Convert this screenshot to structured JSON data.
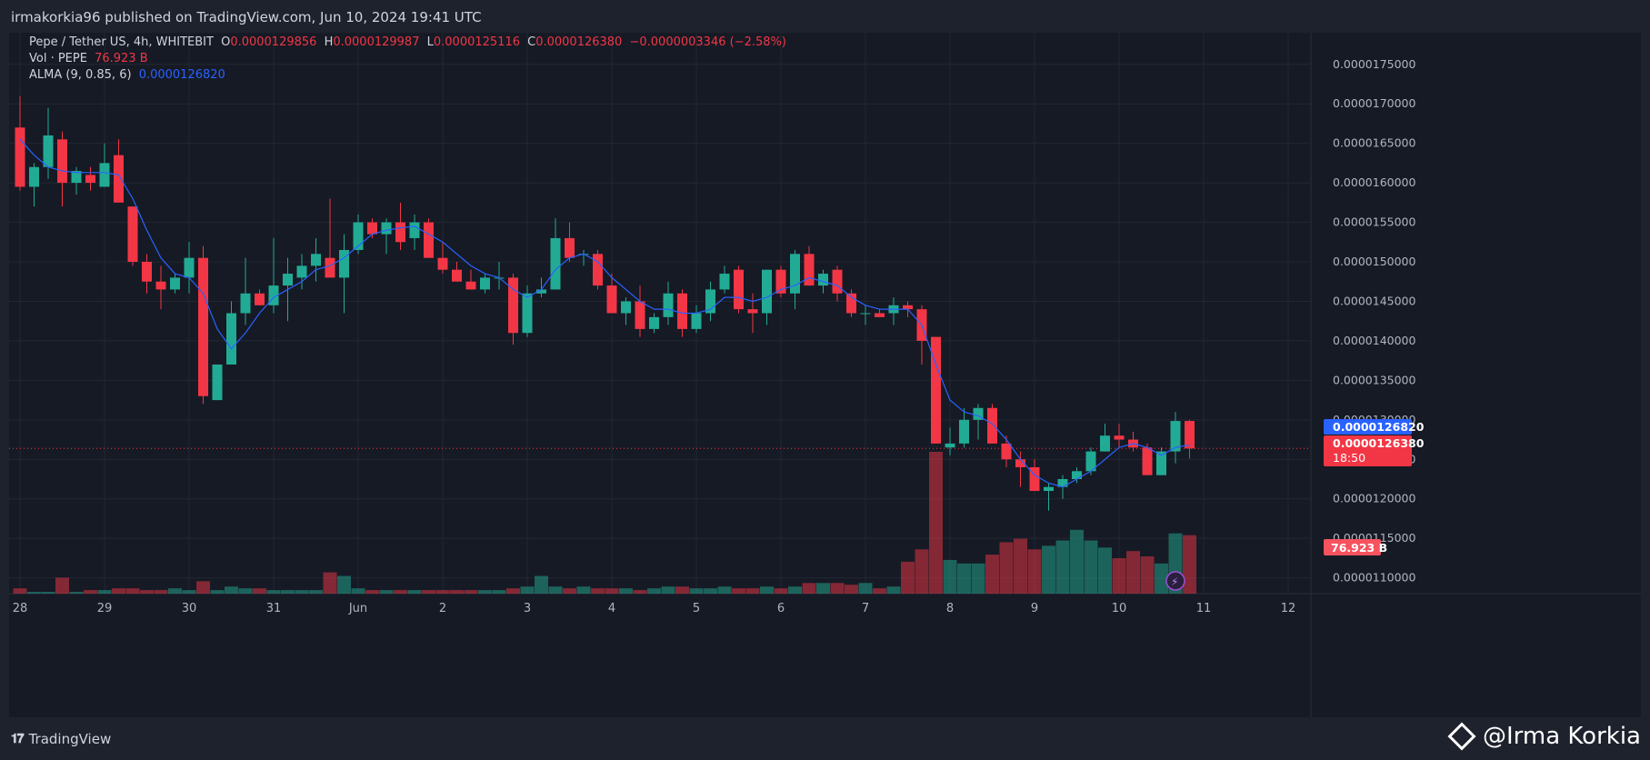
{
  "header": {
    "published": "irmakorkia96 published on TradingView.com, Jun 10, 2024 19:41 UTC"
  },
  "legend": {
    "symbol": "Pepe / Tether US, 4h, WHITEBIT",
    "o_label": "O",
    "o_value": "0.0000129856",
    "h_label": "H",
    "h_value": "0.0000129987",
    "l_label": "L",
    "l_value": "0.0000125116",
    "c_label": "C",
    "c_value": "0.0000126380",
    "change": "−0.0000003346 (−2.58%)",
    "vol_label": "Vol · PEPE",
    "vol_value": "76.923 B",
    "alma_label": "ALMA (9, 0.85, 6)",
    "alma_value": "0.0000126820"
  },
  "badges": {
    "alma": "0.0000126820",
    "price": "0.0000126380",
    "countdown": "18:50",
    "volume": "76.923 B"
  },
  "footer": {
    "brand": "TradingView",
    "watermark": "@Irma Korkia"
  },
  "colors": {
    "up": "#22ab94",
    "down": "#f23645",
    "ma": "#2962ff",
    "background": "#161a25",
    "grid": "#232733"
  },
  "chart_data": {
    "type": "candlestick",
    "title": "Pepe / Tether US, 4h, WHITEBIT",
    "symbol": "PEPEUSDT",
    "exchange": "WHITEBIT",
    "interval": "4h",
    "y_scale": 1e-10,
    "ylim": [
      108000,
      179000
    ],
    "y_ticks": [
      110000,
      115000,
      120000,
      125000,
      130000,
      135000,
      140000,
      145000,
      150000,
      155000,
      160000,
      165000,
      170000,
      175000
    ],
    "x_labels": [
      "28",
      "29",
      "30",
      "31",
      "Jun",
      "2",
      "3",
      "4",
      "5",
      "6",
      "7",
      "8",
      "9",
      "10",
      "11",
      "12"
    ],
    "x_label_index": [
      0,
      6,
      12,
      18,
      24,
      30,
      36,
      42,
      48,
      54,
      60,
      66,
      72,
      78,
      84,
      90
    ],
    "last_price": 126380,
    "alma_last": 126820,
    "candles": [
      [
        0,
        167000,
        171000,
        159000,
        159500,
        3
      ],
      [
        1,
        159500,
        162500,
        157000,
        162000,
        1
      ],
      [
        2,
        162000,
        169500,
        160500,
        166000,
        1
      ],
      [
        3,
        165500,
        166500,
        157000,
        160000,
        9
      ],
      [
        4,
        160000,
        162000,
        158500,
        161500,
        1
      ],
      [
        5,
        161000,
        162000,
        159000,
        160000,
        2
      ],
      [
        6,
        159500,
        165000,
        159500,
        162500,
        2
      ],
      [
        7,
        163500,
        165500,
        157500,
        157500,
        3
      ],
      [
        8,
        157000,
        157000,
        149500,
        150000,
        3
      ],
      [
        9,
        150000,
        151000,
        146000,
        147500,
        2
      ],
      [
        10,
        147500,
        149500,
        144000,
        146500,
        2
      ],
      [
        11,
        146500,
        148500,
        146000,
        148000,
        3
      ],
      [
        12,
        148000,
        152500,
        146000,
        150500,
        2
      ],
      [
        13,
        150500,
        152000,
        132000,
        133000,
        7
      ],
      [
        14,
        132500,
        137000,
        132500,
        137000,
        2
      ],
      [
        15,
        137000,
        145000,
        137000,
        143500,
        4
      ],
      [
        16,
        143500,
        150500,
        142000,
        146000,
        3
      ],
      [
        17,
        146000,
        146500,
        144500,
        144500,
        3
      ],
      [
        18,
        144500,
        153000,
        143500,
        147000,
        2
      ],
      [
        19,
        147000,
        150500,
        142500,
        148500,
        2
      ],
      [
        20,
        148000,
        151000,
        146500,
        149500,
        2
      ],
      [
        21,
        149500,
        153000,
        147500,
        151000,
        2
      ],
      [
        22,
        150500,
        158000,
        148500,
        148000,
        12
      ],
      [
        23,
        148000,
        153500,
        143500,
        151500,
        10
      ],
      [
        24,
        151500,
        156000,
        151000,
        155000,
        3
      ],
      [
        25,
        155000,
        155500,
        153000,
        153500,
        2
      ],
      [
        26,
        153500,
        155500,
        151000,
        155000,
        2
      ],
      [
        27,
        155000,
        157500,
        151500,
        152500,
        2
      ],
      [
        28,
        153000,
        156000,
        151500,
        155000,
        2
      ],
      [
        29,
        155000,
        155500,
        150500,
        150500,
        2
      ],
      [
        30,
        150500,
        152500,
        148500,
        149000,
        2
      ],
      [
        31,
        149000,
        150000,
        147500,
        147500,
        2
      ],
      [
        32,
        147500,
        149000,
        146500,
        146500,
        2
      ],
      [
        33,
        146500,
        148500,
        146000,
        148000,
        2
      ],
      [
        34,
        148000,
        150000,
        146500,
        148000,
        2
      ],
      [
        35,
        148000,
        148500,
        139500,
        141000,
        3
      ],
      [
        36,
        141000,
        147000,
        140500,
        146000,
        4
      ],
      [
        37,
        146000,
        148000,
        145500,
        146500,
        10
      ],
      [
        38,
        146500,
        155500,
        146500,
        153000,
        4
      ],
      [
        39,
        153000,
        155000,
        150000,
        150500,
        3
      ],
      [
        40,
        151000,
        151500,
        149500,
        151000,
        4
      ],
      [
        41,
        151000,
        151500,
        146500,
        147000,
        3
      ],
      [
        42,
        147000,
        148500,
        143500,
        143500,
        3
      ],
      [
        43,
        143500,
        145500,
        142000,
        145000,
        3
      ],
      [
        44,
        145000,
        147000,
        140500,
        141500,
        2
      ],
      [
        45,
        141500,
        143500,
        141000,
        143000,
        3
      ],
      [
        46,
        143000,
        147500,
        142000,
        146000,
        4
      ],
      [
        47,
        146000,
        146500,
        140500,
        141500,
        4
      ],
      [
        48,
        141500,
        144500,
        141000,
        143500,
        3
      ],
      [
        49,
        143500,
        147500,
        142500,
        146500,
        3
      ],
      [
        50,
        146500,
        149500,
        146000,
        148500,
        4
      ],
      [
        51,
        149000,
        149500,
        143500,
        144000,
        3
      ],
      [
        52,
        144000,
        146000,
        141000,
        143500,
        3
      ],
      [
        53,
        143500,
        149000,
        142000,
        149000,
        4
      ],
      [
        54,
        149000,
        149500,
        145500,
        146000,
        3
      ],
      [
        55,
        146000,
        151500,
        144000,
        151000,
        4
      ],
      [
        56,
        151000,
        152000,
        147000,
        147000,
        6
      ],
      [
        57,
        147000,
        149000,
        146000,
        148500,
        6
      ],
      [
        58,
        149000,
        149500,
        145000,
        146000,
        6
      ],
      [
        59,
        146000,
        146500,
        143000,
        143500,
        5
      ],
      [
        60,
        143500,
        144500,
        142000,
        143500,
        6
      ],
      [
        61,
        143500,
        144000,
        143000,
        143000,
        3
      ],
      [
        62,
        143500,
        145500,
        142000,
        144500,
        4
      ],
      [
        63,
        144500,
        145000,
        143000,
        144000,
        18
      ],
      [
        64,
        144000,
        144500,
        137000,
        140000,
        25
      ],
      [
        65,
        140500,
        140500,
        127000,
        127000,
        80
      ],
      [
        66,
        126500,
        129000,
        125500,
        127000,
        19
      ],
      [
        67,
        127000,
        131500,
        126500,
        130000,
        17
      ],
      [
        68,
        130000,
        132000,
        127500,
        131500,
        17
      ],
      [
        69,
        131500,
        132000,
        127000,
        127000,
        22
      ],
      [
        70,
        127000,
        128000,
        124000,
        125000,
        29
      ],
      [
        71,
        125000,
        126000,
        121500,
        124000,
        31
      ],
      [
        72,
        124000,
        125000,
        121000,
        121000,
        25
      ],
      [
        73,
        121000,
        122000,
        118500,
        121500,
        27
      ],
      [
        74,
        121500,
        123000,
        120000,
        122500,
        30
      ],
      [
        75,
        122500,
        124000,
        122000,
        123500,
        36
      ],
      [
        76,
        123500,
        126500,
        123000,
        126000,
        30
      ],
      [
        77,
        126000,
        129500,
        126000,
        128000,
        26
      ],
      [
        78,
        128000,
        129500,
        126500,
        127500,
        20
      ],
      [
        79,
        127500,
        128500,
        126000,
        126500,
        24
      ],
      [
        80,
        126500,
        127000,
        123000,
        123000,
        21
      ],
      [
        81,
        123000,
        126500,
        123000,
        126000,
        17
      ],
      [
        82,
        126000,
        131000,
        124500,
        129856,
        34
      ],
      [
        83,
        129856,
        129987,
        125116,
        126380,
        33
      ]
    ],
    "volume_unit": "relative",
    "alma": [
      165500,
      163500,
      162000,
      161500,
      161300,
      161300,
      161300,
      161000,
      158000,
      154000,
      150500,
      148500,
      148000,
      146000,
      141500,
      139000,
      141000,
      143500,
      145500,
      146500,
      147500,
      149000,
      149500,
      150500,
      152000,
      153500,
      154000,
      154300,
      154500,
      153500,
      152500,
      151000,
      149500,
      148500,
      148000,
      146500,
      145500,
      146500,
      149000,
      150500,
      151000,
      150000,
      148000,
      146500,
      145000,
      144000,
      144000,
      143500,
      143500,
      144000,
      145500,
      145500,
      145000,
      145500,
      146500,
      147000,
      148000,
      147500,
      147000,
      145500,
      144500,
      144000,
      144000,
      144000,
      142000,
      137000,
      132500,
      131000,
      130500,
      129500,
      127500,
      125000,
      123000,
      122000,
      121500,
      122500,
      123500,
      125000,
      126500,
      127000,
      126500,
      125500,
      126500,
      126820
    ]
  }
}
